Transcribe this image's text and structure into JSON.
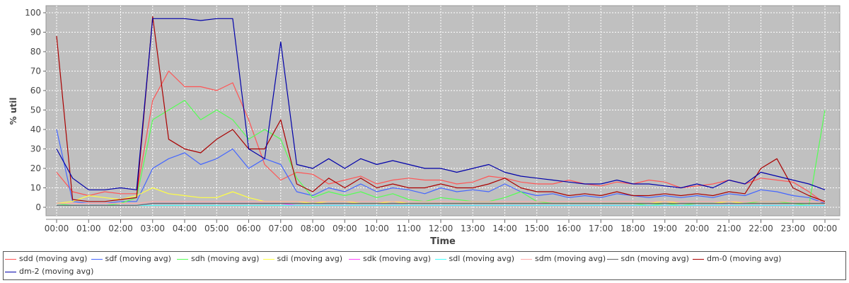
{
  "chart_data": {
    "type": "line",
    "title": "",
    "xlabel": "Time",
    "ylabel": "% util",
    "ylim": [
      0,
      100
    ],
    "yticks": [
      0,
      10,
      20,
      30,
      40,
      50,
      60,
      70,
      80,
      90,
      100
    ],
    "x_tick_labels": [
      "00:00",
      "01:00",
      "02:00",
      "03:00",
      "04:00",
      "05:00",
      "06:00",
      "07:00",
      "08:00",
      "09:00",
      "10:00",
      "11:00",
      "12:00",
      "13:00",
      "14:00",
      "15:00",
      "16:00",
      "17:00",
      "18:00",
      "19:00",
      "20:00",
      "21:00",
      "22:00",
      "23:00",
      "00:00"
    ],
    "x_hours": [
      0,
      0.5,
      1,
      1.5,
      2,
      2.5,
      3,
      3.5,
      4,
      4.5,
      5,
      5.5,
      6,
      6.5,
      7,
      7.5,
      8,
      8.5,
      9,
      9.5,
      10,
      10.5,
      11,
      11.5,
      12,
      12.5,
      13,
      13.5,
      14,
      14.5,
      15,
      15.5,
      16,
      16.5,
      17,
      17.5,
      18,
      18.5,
      19,
      19.5,
      20,
      20.5,
      21,
      21.5,
      22,
      22.5,
      23,
      23.5,
      24
    ],
    "grid": true,
    "background": "#c0c0c0",
    "legend_position": "bottom",
    "series": [
      {
        "name": "sdd (moving avg)",
        "color": "#ff5555",
        "values": [
          18,
          8,
          6,
          8,
          7,
          7,
          55,
          70,
          62,
          62,
          60,
          64,
          45,
          22,
          14,
          18,
          17,
          12,
          14,
          16,
          12,
          14,
          15,
          14,
          14,
          12,
          13,
          16,
          15,
          13,
          12,
          12,
          14,
          12,
          11,
          13,
          12,
          14,
          13,
          10,
          11,
          12,
          14,
          12,
          15,
          14,
          13,
          8,
          2
        ]
      },
      {
        "name": "sdf (moving avg)",
        "color": "#4466ff",
        "values": [
          40,
          3,
          2,
          2,
          3,
          3,
          20,
          25,
          28,
          22,
          25,
          30,
          20,
          25,
          22,
          8,
          6,
          10,
          8,
          12,
          8,
          10,
          9,
          7,
          10,
          8,
          9,
          8,
          12,
          8,
          6,
          7,
          5,
          6,
          5,
          7,
          6,
          5,
          6,
          5,
          6,
          5,
          7,
          6,
          9,
          8,
          6,
          5,
          2
        ]
      },
      {
        "name": "sdh (moving avg)",
        "color": "#55ff55",
        "values": [
          2,
          1,
          1,
          1,
          2,
          5,
          45,
          50,
          55,
          45,
          50,
          45,
          35,
          40,
          35,
          15,
          5,
          8,
          6,
          8,
          5,
          7,
          4,
          3,
          5,
          4,
          3,
          3,
          5,
          8,
          3,
          2,
          2,
          2,
          2,
          2,
          2,
          1,
          2,
          1,
          2,
          2,
          3,
          2,
          3,
          3,
          2,
          1,
          50
        ]
      },
      {
        "name": "sdi (moving avg)",
        "color": "#ffff44",
        "values": [
          2,
          3,
          6,
          5,
          4,
          6,
          10,
          7,
          6,
          5,
          5,
          8,
          5,
          3,
          3,
          3,
          2,
          3,
          3,
          2,
          2,
          3,
          2,
          2,
          2,
          2,
          2,
          2,
          2,
          2,
          2,
          2,
          2,
          2,
          2,
          2,
          2,
          2,
          3,
          2,
          2,
          2,
          3,
          2,
          2,
          2,
          2,
          2,
          2
        ]
      },
      {
        "name": "sdk (moving avg)",
        "color": "#ff44ff",
        "values": [
          1,
          1,
          1,
          1,
          1,
          1,
          2,
          2,
          2,
          2,
          2,
          2,
          2,
          2,
          2,
          1,
          1,
          1,
          1,
          1,
          1,
          1,
          1,
          1,
          1,
          1,
          1,
          1,
          1,
          1,
          1,
          1,
          1,
          1,
          1,
          1,
          1,
          1,
          1,
          1,
          1,
          1,
          1,
          1,
          1,
          1,
          1,
          1,
          1
        ]
      },
      {
        "name": "sdl (moving avg)",
        "color": "#44ffff",
        "values": [
          1,
          1,
          1,
          1,
          1,
          1,
          1,
          1,
          1,
          1,
          1,
          1,
          1,
          1,
          1,
          1,
          1,
          1,
          1,
          1,
          1,
          1,
          1,
          1,
          1,
          1,
          1,
          1,
          1,
          1,
          1,
          1,
          1,
          1,
          1,
          1,
          1,
          1,
          1,
          1,
          1,
          1,
          1,
          1,
          1,
          1,
          1,
          1,
          1
        ]
      },
      {
        "name": "sdm (moving avg)",
        "color": "#ffaaaa",
        "values": [
          2,
          2,
          2,
          2,
          2,
          2,
          3,
          3,
          3,
          3,
          3,
          3,
          3,
          3,
          3,
          3,
          3,
          3,
          3,
          3,
          3,
          3,
          3,
          3,
          3,
          3,
          3,
          3,
          3,
          3,
          3,
          3,
          3,
          3,
          3,
          3,
          3,
          3,
          3,
          3,
          3,
          3,
          3,
          3,
          3,
          3,
          3,
          3,
          3
        ]
      },
      {
        "name": "sdn (moving avg)",
        "color": "#666666",
        "values": [
          1,
          1,
          1,
          1,
          1,
          1,
          2,
          2,
          2,
          2,
          2,
          2,
          2,
          2,
          2,
          2,
          2,
          2,
          2,
          2,
          2,
          2,
          2,
          2,
          2,
          2,
          2,
          2,
          2,
          2,
          2,
          2,
          2,
          2,
          2,
          2,
          2,
          2,
          2,
          2,
          2,
          2,
          2,
          2,
          2,
          2,
          2,
          2,
          2
        ]
      },
      {
        "name": "dm-0 (moving avg)",
        "color": "#aa0000",
        "values": [
          88,
          4,
          3,
          3,
          4,
          5,
          98,
          35,
          30,
          28,
          35,
          40,
          30,
          30,
          45,
          12,
          8,
          15,
          10,
          15,
          10,
          12,
          10,
          10,
          12,
          10,
          10,
          12,
          15,
          10,
          8,
          8,
          6,
          7,
          6,
          8,
          6,
          6,
          7,
          6,
          7,
          6,
          8,
          7,
          20,
          25,
          10,
          6,
          3
        ]
      },
      {
        "name": "dm-2 (moving avg)",
        "color": "#0000aa",
        "values": [
          30,
          15,
          9,
          9,
          10,
          9,
          97,
          97,
          97,
          96,
          97,
          97,
          30,
          25,
          85,
          22,
          20,
          25,
          20,
          25,
          22,
          24,
          22,
          20,
          20,
          18,
          20,
          22,
          18,
          16,
          15,
          14,
          13,
          12,
          12,
          14,
          12,
          12,
          11,
          10,
          12,
          10,
          14,
          12,
          18,
          16,
          14,
          12,
          9
        ]
      }
    ]
  }
}
